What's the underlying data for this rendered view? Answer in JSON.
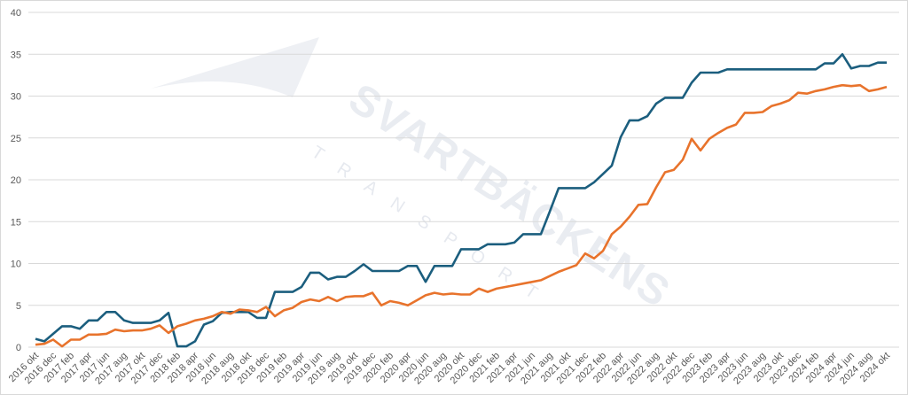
{
  "chart_data": {
    "type": "line",
    "title": "",
    "xlabel": "",
    "ylabel": "",
    "ylim": [
      0,
      40
    ],
    "yticks": [
      0,
      5,
      10,
      15,
      20,
      25,
      30,
      35,
      40
    ],
    "grid": true,
    "legend": "none",
    "watermark": [
      "SVARTBÄCKENS",
      "TRANSPORT"
    ],
    "start_month": "2016 okt",
    "x_tick_labels": [
      "2016 okt",
      "2016 dec",
      "2017 feb",
      "2017 apr",
      "2017 jun",
      "2017 aug",
      "2017 okt",
      "2017 dec",
      "2018 feb",
      "2018 apr",
      "2018 jun",
      "2018 aug",
      "2018 okt",
      "2018 dec",
      "2019 feb",
      "2019 apr",
      "2019 jun",
      "2019 aug",
      "2019 okt",
      "2019 dec",
      "2020 feb",
      "2020 apr",
      "2020 jun",
      "2020 aug",
      "2020 okt",
      "2020 dec",
      "2021 feb",
      "2021 apr",
      "2021 jun",
      "2021 aug",
      "2021 okt",
      "2021 dec",
      "2022 feb",
      "2022 apr",
      "2022 jun",
      "2022 aug",
      "2022 okt",
      "2022 dec",
      "2023 feb",
      "2023 apr",
      "2023 jun",
      "2023 aug",
      "2023 okt",
      "2023 dec",
      "2024 feb",
      "2024 apr",
      "2024 jun",
      "2024 aug",
      "2024 okt"
    ],
    "series": [
      {
        "color": "#1b5e7e",
        "values": [
          1.0,
          0.7,
          1.6,
          2.5,
          2.5,
          2.2,
          3.2,
          3.2,
          4.2,
          4.2,
          3.2,
          2.9,
          2.9,
          2.9,
          3.2,
          4.1,
          0.1,
          0.1,
          0.7,
          2.7,
          3.1,
          4.1,
          4.2,
          4.2,
          4.2,
          3.5,
          3.5,
          6.6,
          6.6,
          6.6,
          7.2,
          8.9,
          8.9,
          8.1,
          8.4,
          8.4,
          9.1,
          9.9,
          9.1,
          9.1,
          9.1,
          9.1,
          9.7,
          9.7,
          7.8,
          9.7,
          9.7,
          9.7,
          11.7,
          11.7,
          11.7,
          12.3,
          12.3,
          12.3,
          12.5,
          13.5,
          13.5,
          13.5,
          16.2,
          19.0,
          19.0,
          19.0,
          19.0,
          19.7,
          20.7,
          21.7,
          25.1,
          27.1,
          27.1,
          27.6,
          29.1,
          29.8,
          29.8,
          29.8,
          31.6,
          32.8,
          32.8,
          32.8,
          33.2,
          33.2,
          33.2,
          33.2,
          33.2,
          33.2,
          33.2,
          33.2,
          33.2,
          33.2,
          33.2,
          33.9,
          33.9,
          35.0,
          33.3,
          33.6,
          33.6,
          34.0,
          34.0
        ]
      },
      {
        "color": "#e8732c",
        "values": [
          0.3,
          0.4,
          0.9,
          0.1,
          0.9,
          0.9,
          1.5,
          1.5,
          1.6,
          2.1,
          1.9,
          2.0,
          2.0,
          2.2,
          2.6,
          1.7,
          2.5,
          2.8,
          3.2,
          3.4,
          3.7,
          4.2,
          4.0,
          4.5,
          4.4,
          4.2,
          4.8,
          3.7,
          4.4,
          4.7,
          5.4,
          5.7,
          5.5,
          6.0,
          5.5,
          6.0,
          6.1,
          6.1,
          6.5,
          5.0,
          5.5,
          5.3,
          5.0,
          5.6,
          6.2,
          6.5,
          6.3,
          6.4,
          6.3,
          6.3,
          7.0,
          6.6,
          7.0,
          7.2,
          7.4,
          7.6,
          7.8,
          8.0,
          8.5,
          9.0,
          9.4,
          9.8,
          11.2,
          10.6,
          11.5,
          13.5,
          14.4,
          15.6,
          17.0,
          17.1,
          19.1,
          20.9,
          21.2,
          22.4,
          24.9,
          23.5,
          24.9,
          25.6,
          26.2,
          26.6,
          28.0,
          28.0,
          28.1,
          28.8,
          29.1,
          29.5,
          30.4,
          30.3,
          30.6,
          30.8,
          31.1,
          31.3,
          31.2,
          31.3,
          30.6,
          30.8,
          31.1
        ]
      }
    ]
  }
}
